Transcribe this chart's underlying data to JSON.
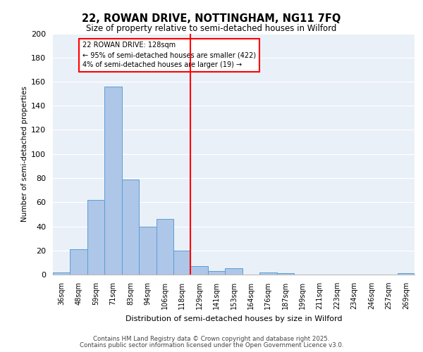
{
  "title1": "22, ROWAN DRIVE, NOTTINGHAM, NG11 7FQ",
  "title2": "Size of property relative to semi-detached houses in Wilford",
  "xlabel": "Distribution of semi-detached houses by size in Wilford",
  "ylabel": "Number of semi-detached properties",
  "categories": [
    "36sqm",
    "48sqm",
    "59sqm",
    "71sqm",
    "83sqm",
    "94sqm",
    "106sqm",
    "118sqm",
    "129sqm",
    "141sqm",
    "153sqm",
    "164sqm",
    "176sqm",
    "187sqm",
    "199sqm",
    "211sqm",
    "223sqm",
    "234sqm",
    "246sqm",
    "257sqm",
    "269sqm"
  ],
  "values": [
    2,
    21,
    62,
    156,
    79,
    40,
    46,
    20,
    7,
    3,
    5,
    0,
    2,
    1,
    0,
    0,
    0,
    0,
    0,
    0,
    1
  ],
  "bar_color": "#aec6e8",
  "bar_edge_color": "#5a9fd4",
  "property_sqm": 128,
  "pct_smaller": 95,
  "count_smaller": 422,
  "pct_larger": 4,
  "count_larger": 19,
  "annotation_label": "22 ROWAN DRIVE: 128sqm",
  "annotation_line1": "← 95% of semi-detached houses are smaller (422)",
  "annotation_line2": "4% of semi-detached houses are larger (19) →",
  "ylim": [
    0,
    200
  ],
  "yticks": [
    0,
    20,
    40,
    60,
    80,
    100,
    120,
    140,
    160,
    180,
    200
  ],
  "bg_color": "#eaf0f8",
  "footer1": "Contains HM Land Registry data © Crown copyright and database right 2025.",
  "footer2": "Contains public sector information licensed under the Open Government Licence v3.0."
}
